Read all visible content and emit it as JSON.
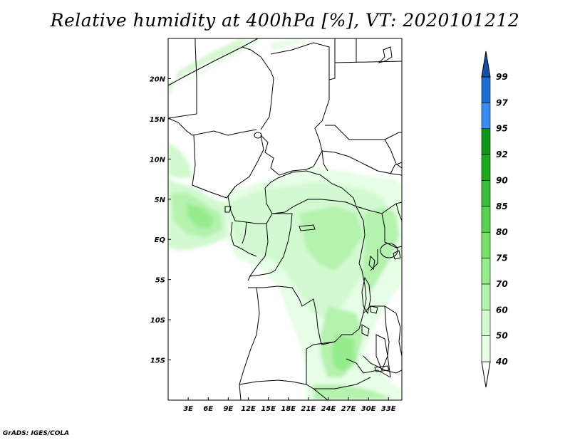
{
  "title": "Relative humidity at 400hPa [%], VT: 2020101212",
  "credit": "GrADS: IGES/COLA",
  "map": {
    "lat_labels": [
      "20N",
      "15N",
      "10N",
      "5N",
      "EQ",
      "5S",
      "10S",
      "15S"
    ],
    "lat_values": [
      20,
      15,
      10,
      5,
      0,
      -5,
      -10,
      -15
    ],
    "lon_labels": [
      "3E",
      "6E",
      "9E",
      "12E",
      "15E",
      "18E",
      "21E",
      "24E",
      "27E",
      "30E",
      "33E"
    ],
    "lon_values": [
      3,
      6,
      9,
      12,
      15,
      18,
      21,
      24,
      27,
      30,
      33
    ],
    "lon_range": [
      0,
      35
    ],
    "lat_range": [
      -20,
      25
    ]
  },
  "colorbar": {
    "labels": [
      "40",
      "50",
      "60",
      "70",
      "75",
      "80",
      "85",
      "90",
      "92",
      "95",
      "97",
      "99"
    ],
    "colors": [
      "#ffffff",
      "#e6fde6",
      "#d2f9cf",
      "#b4f2ae",
      "#96eb8c",
      "#78e16a",
      "#5ad150",
      "#3cbe3c",
      "#1ea81e",
      "#12961a",
      "#3c8cf0",
      "#1e6ed2",
      "#1450aa"
    ]
  }
}
